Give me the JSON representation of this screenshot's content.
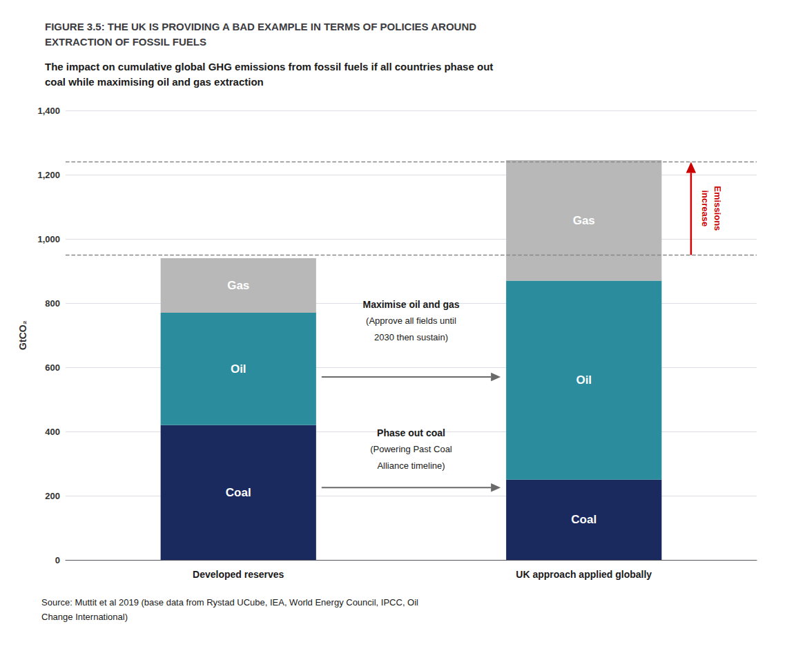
{
  "chart_data": {
    "type": "bar",
    "title": "FIGURE 3.5: THE UK IS PROVIDING A BAD EXAMPLE IN TERMS OF POLICIES AROUND\nEXTRACTION OF FOSSIL FUELS",
    "subtitle": "The impact on cumulative global GHG emissions from fossil fuels if all countries phase out\ncoal while maximising oil and gas extraction",
    "source": "Source: Muttit et al 2019 (base data from Rystad UCube, IEA, World Energy Council, IPCC, Oil\nChange International)",
    "ylabel": "GtCO₂",
    "categories": [
      "Developed reserves",
      "UK approach applied globally"
    ],
    "series": [
      {
        "name": "Coal",
        "color": "#1b2a5e",
        "values": [
          420,
          250
        ]
      },
      {
        "name": "Oil",
        "color": "#2a8c9c",
        "values": [
          350,
          620
        ]
      },
      {
        "name": "Gas",
        "color": "#b8b8b8",
        "values": [
          170,
          375
        ]
      }
    ],
    "stacked": true,
    "ylim": [
      0,
      1400
    ],
    "yticks": [
      0,
      200,
      400,
      600,
      800,
      {
        "value": 1000,
        "label": "1,000"
      },
      {
        "value": 1200,
        "label": "1,200"
      },
      {
        "value": 1400,
        "label": "1,400"
      }
    ],
    "grid": true,
    "reference_lines": [
      950,
      1240
    ],
    "annotations": [
      {
        "text": "Maximise oil and gas\n(Approve all fields until\n2030 then sustain)"
      },
      {
        "text": "Phase out coal\n(Powering Past Coal\nAlliance timeline)"
      },
      {
        "text": "Emissions\nincrease",
        "color": "#cc0000"
      }
    ]
  }
}
